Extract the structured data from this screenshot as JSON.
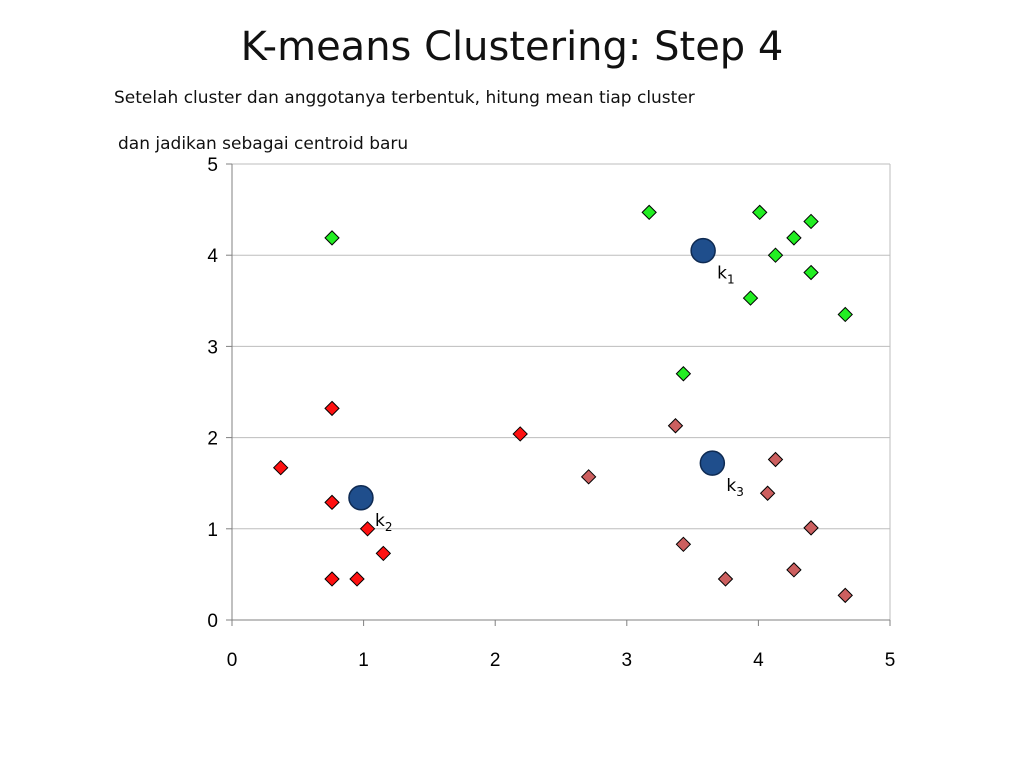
{
  "title": "K-means Clustering: Step 4",
  "subtitle_line1": "Setelah cluster dan anggotanya terbentuk, hitung mean tiap cluster",
  "subtitle_line2": "dan jadikan sebagai centroid baru",
  "chart_data": {
    "type": "scatter",
    "xlim": [
      0,
      5
    ],
    "ylim": [
      0,
      5
    ],
    "x_ticks": [
      0,
      1,
      2,
      3,
      4,
      5
    ],
    "y_ticks": [
      0,
      1,
      2,
      3,
      4,
      5
    ],
    "gridlines": "horizontal",
    "xlabel": "",
    "ylabel": "",
    "series": [
      {
        "color": "#22EE22",
        "marker": "diamond",
        "points": [
          [
            0.76,
            4.19
          ],
          [
            3.17,
            4.47
          ],
          [
            4.01,
            4.47
          ],
          [
            4.4,
            4.37
          ],
          [
            4.27,
            4.19
          ],
          [
            4.13,
            4.0
          ],
          [
            4.4,
            3.81
          ],
          [
            3.94,
            3.53
          ],
          [
            4.66,
            3.35
          ],
          [
            3.43,
            2.7
          ]
        ]
      },
      {
        "color": "#FF1111",
        "marker": "diamond",
        "points": [
          [
            0.76,
            2.32
          ],
          [
            2.19,
            2.04
          ],
          [
            0.37,
            1.67
          ],
          [
            0.76,
            1.29
          ],
          [
            1.03,
            1.0
          ],
          [
            1.15,
            0.73
          ],
          [
            0.76,
            0.45
          ],
          [
            0.95,
            0.45
          ]
        ]
      },
      {
        "color": "#CC5F5F",
        "marker": "diamond",
        "points": [
          [
            3.37,
            2.13
          ],
          [
            2.71,
            1.57
          ],
          [
            4.13,
            1.76
          ],
          [
            4.07,
            1.39
          ],
          [
            4.4,
            1.01
          ],
          [
            3.43,
            0.83
          ],
          [
            3.75,
            0.45
          ],
          [
            4.27,
            0.55
          ],
          [
            4.66,
            0.27
          ]
        ]
      }
    ],
    "centroids": [
      {
        "label": "k",
        "sub": "1",
        "x": 3.58,
        "y": 4.05,
        "color": "#1F4E8C"
      },
      {
        "label": "k",
        "sub": "2",
        "x": 0.98,
        "y": 1.34,
        "color": "#1F4E8C"
      },
      {
        "label": "k",
        "sub": "3",
        "x": 3.65,
        "y": 1.72,
        "color": "#1F4E8C"
      }
    ]
  }
}
